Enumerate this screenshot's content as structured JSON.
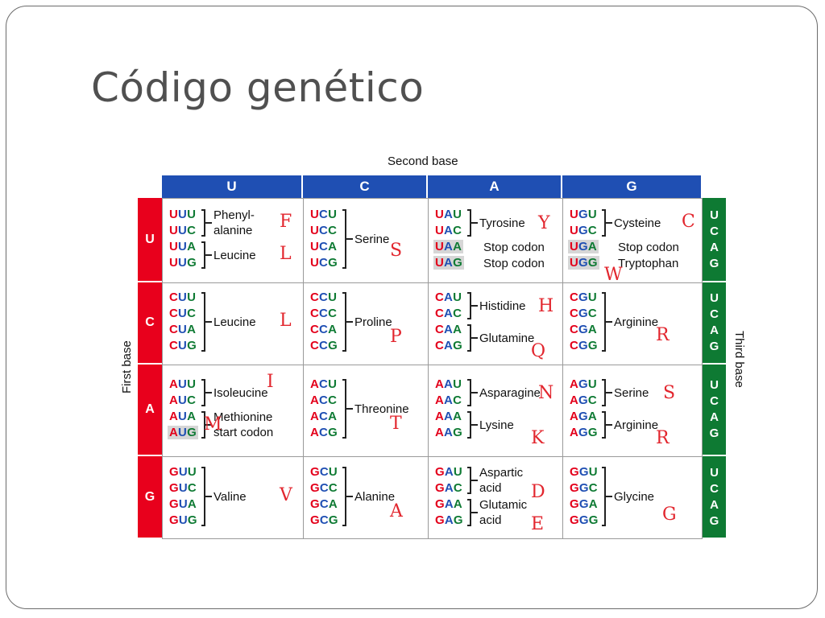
{
  "title": "Código genético",
  "axes": {
    "second": "Second base",
    "first": "First base",
    "third": "Third base"
  },
  "bases": [
    "U",
    "C",
    "A",
    "G"
  ],
  "rows": [
    {
      "base": "U",
      "cells": [
        {
          "codons": [
            "UUU",
            "UUC",
            "UUA",
            "UUG"
          ],
          "groups": [
            {
              "label": "Phenyl-\nalanine",
              "letter": "F"
            },
            {
              "label": "Leucine",
              "letter": "L"
            }
          ]
        },
        {
          "codons": [
            "UCU",
            "UCC",
            "UCA",
            "UCG"
          ],
          "groups": [
            {
              "label": "Serine",
              "letter": "S"
            }
          ]
        },
        {
          "codons": [
            "UAU",
            "UAC",
            "UAA",
            "UAG"
          ],
          "groups": [
            {
              "label": "Tyrosine",
              "letter": "Y"
            },
            {
              "label": "Stop codon"
            },
            {
              "label": "Stop codon"
            }
          ]
        },
        {
          "codons": [
            "UGU",
            "UGC",
            "UGA",
            "UGG"
          ],
          "groups": [
            {
              "label": "Cysteine",
              "letter": "C"
            },
            {
              "label": "Stop codon"
            },
            {
              "label": "Tryptophan",
              "letter": "W"
            }
          ]
        }
      ]
    },
    {
      "base": "C",
      "cells": [
        {
          "codons": [
            "CUU",
            "CUC",
            "CUA",
            "CUG"
          ],
          "groups": [
            {
              "label": "Leucine",
              "letter": "L"
            }
          ]
        },
        {
          "codons": [
            "CCU",
            "CCC",
            "CCA",
            "CCG"
          ],
          "groups": [
            {
              "label": "Proline",
              "letter": "P"
            }
          ]
        },
        {
          "codons": [
            "CAU",
            "CAC",
            "CAA",
            "CAG"
          ],
          "groups": [
            {
              "label": "Histidine",
              "letter": "H"
            },
            {
              "label": "Glutamine",
              "letter": "Q"
            }
          ]
        },
        {
          "codons": [
            "CGU",
            "CGC",
            "CGA",
            "CGG"
          ],
          "groups": [
            {
              "label": "Arginine",
              "letter": "R"
            }
          ]
        }
      ]
    },
    {
      "base": "A",
      "cells": [
        {
          "codons": [
            "AUU",
            "AUC",
            "AUA",
            "AUG"
          ],
          "groups": [
            {
              "label": "Isoleucine",
              "letter": "I"
            },
            {
              "label": "Methionine\nstart codon",
              "letter": "M"
            }
          ]
        },
        {
          "codons": [
            "ACU",
            "ACC",
            "ACA",
            "ACG"
          ],
          "groups": [
            {
              "label": "Threonine",
              "letter": "T"
            }
          ]
        },
        {
          "codons": [
            "AAU",
            "AAC",
            "AAA",
            "AAG"
          ],
          "groups": [
            {
              "label": "Asparagine",
              "letter": "N"
            },
            {
              "label": "Lysine",
              "letter": "K"
            }
          ]
        },
        {
          "codons": [
            "AGU",
            "AGC",
            "AGA",
            "AGG"
          ],
          "groups": [
            {
              "label": "Serine",
              "letter": "S"
            },
            {
              "label": "Arginine",
              "letter": "R"
            }
          ]
        }
      ]
    },
    {
      "base": "G",
      "cells": [
        {
          "codons": [
            "GUU",
            "GUC",
            "GUA",
            "GUG"
          ],
          "groups": [
            {
              "label": "Valine",
              "letter": "V"
            }
          ]
        },
        {
          "codons": [
            "GCU",
            "GCC",
            "GCA",
            "GCG"
          ],
          "groups": [
            {
              "label": "Alanine",
              "letter": "A"
            }
          ]
        },
        {
          "codons": [
            "GAU",
            "GAC",
            "GAA",
            "GAG"
          ],
          "groups": [
            {
              "label": "Aspartic\nacid",
              "letter": "D"
            },
            {
              "label": "Glutamic\nacid",
              "letter": "E"
            }
          ]
        },
        {
          "codons": [
            "GGU",
            "GGC",
            "GGA",
            "GGG"
          ],
          "groups": [
            {
              "label": "Glycine",
              "letter": "G"
            }
          ]
        }
      ]
    }
  ],
  "highlighted_codons": [
    "UAA",
    "UAG",
    "UGA",
    "UGG",
    "AUG"
  ],
  "colors": {
    "first_base": "#e3001b",
    "second_base": "#1f4fb3",
    "third_base": "#0e7a33",
    "letter_annotation": "#e2262e",
    "highlight": "#d6d6d6"
  }
}
